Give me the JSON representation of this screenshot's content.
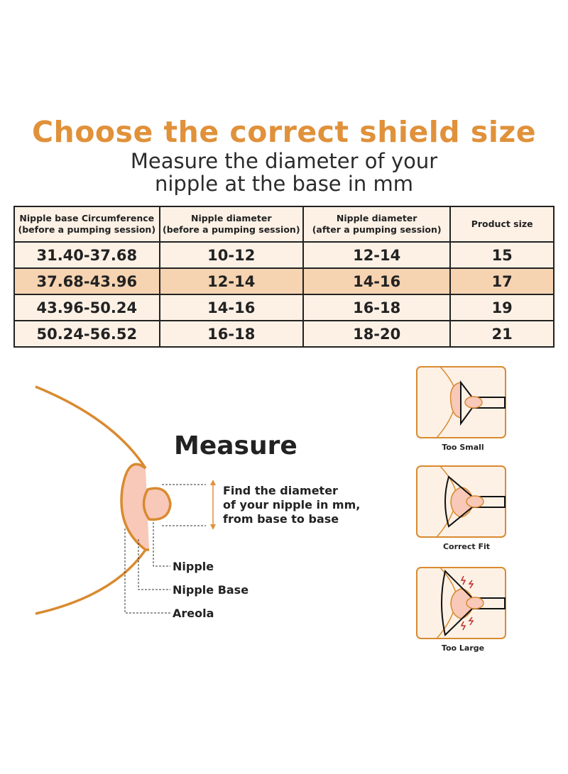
{
  "title": "Choose the correct shield size",
  "subtitle": [
    "Measure the diameter of your",
    "nipple at the base in mm"
  ],
  "table": {
    "headers": [
      [
        "Nipple base Circumference",
        "(before a pumping session)"
      ],
      [
        "Nipple  diameter",
        "(before a pumping session)"
      ],
      [
        "Nipple  diameter",
        "(after a pumping session)"
      ],
      [
        "Product size"
      ]
    ],
    "rows": [
      [
        "31.40-37.68",
        "10-12",
        "12-14",
        "15"
      ],
      [
        "37.68-43.96",
        "12-14",
        "14-16",
        "17"
      ],
      [
        "43.96-50.24",
        "14-16",
        "16-18",
        "19"
      ],
      [
        "50.24-56.52",
        "16-18",
        "18-20",
        "21"
      ]
    ],
    "highlighted_row": 1
  },
  "measure": {
    "heading": "Measure",
    "instruction": [
      "Find the diameter",
      "of your nipple in mm,",
      "from base to base"
    ],
    "labels": [
      "Nipple",
      "Nipple Base",
      "Areola"
    ]
  },
  "fits": [
    "Too Small",
    "Correct Fit",
    "Too Large"
  ],
  "colors": {
    "accent": "#e0913a",
    "skin": "#fdf1e6",
    "areola": "#f8c8b8",
    "highlight": "#f6d3b1",
    "outline": "#d98a30",
    "warning": "#c0302a"
  }
}
